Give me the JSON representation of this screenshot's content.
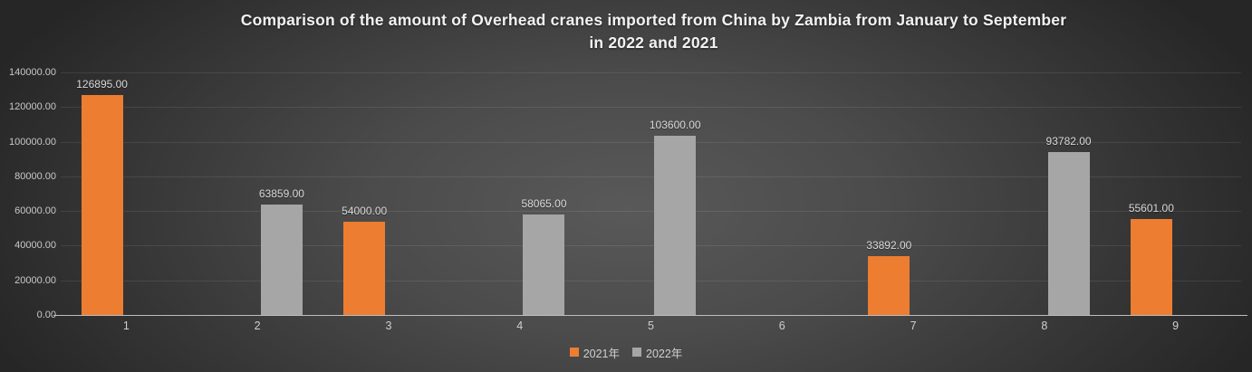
{
  "title": {
    "line1": "Comparison of the amount of Overhead cranes imported from China by Zambia from January to September",
    "line2": "in 2022 and 2021"
  },
  "chart_data": {
    "type": "bar",
    "title": "Comparison of the amount of Overhead cranes imported from China by Zambia from January to September in 2022 and 2021",
    "categories": [
      "1",
      "2",
      "3",
      "4",
      "5",
      "6",
      "7",
      "8",
      "9"
    ],
    "series": [
      {
        "name": "2021年",
        "color": "#ED7D31",
        "values": [
          126895,
          null,
          54000,
          null,
          null,
          null,
          33892,
          null,
          55601
        ],
        "labels": [
          "126895.00",
          null,
          "54000.00",
          null,
          null,
          null,
          "33892.00",
          null,
          "55601.00"
        ]
      },
      {
        "name": "2022年",
        "color": "#A6A6A6",
        "values": [
          null,
          63859,
          null,
          58065,
          103600,
          null,
          null,
          93782,
          null
        ],
        "labels": [
          null,
          "63859.00",
          null,
          "58065.00",
          "103600.00",
          null,
          null,
          "93782.00",
          null
        ]
      }
    ],
    "ylim": [
      0,
      140000
    ],
    "ytick_step": 20000,
    "ytick_labels": [
      "0.00",
      "20000.00",
      "40000.00",
      "60000.00",
      "80000.00",
      "100000.00",
      "120000.00",
      "140000.00"
    ],
    "grid": true,
    "legend_position": "bottom"
  }
}
